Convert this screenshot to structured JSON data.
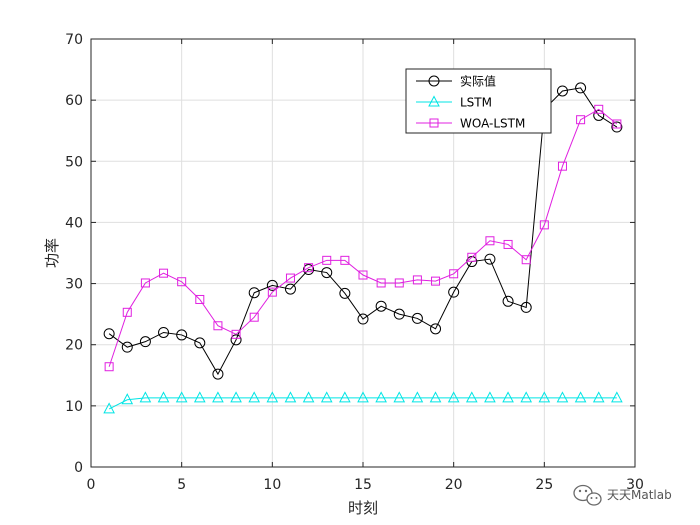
{
  "chart_data": {
    "type": "line",
    "title": "",
    "xlabel": "时刻",
    "ylabel": "功率",
    "xlim": [
      0,
      30
    ],
    "ylim": [
      0,
      70
    ],
    "xticks": [
      0,
      5,
      10,
      15,
      20,
      25,
      30
    ],
    "yticks": [
      0,
      10,
      20,
      30,
      40,
      50,
      60,
      70
    ],
    "grid": true,
    "legend_position": "top-right",
    "x": [
      1,
      2,
      3,
      4,
      5,
      6,
      7,
      8,
      9,
      10,
      11,
      12,
      13,
      14,
      15,
      16,
      17,
      18,
      19,
      20,
      21,
      22,
      23,
      24,
      25,
      26,
      27,
      28,
      29
    ],
    "series": [
      {
        "name": "实际值",
        "color": "#000000",
        "marker": "circle",
        "values": [
          21.8,
          19.6,
          20.5,
          22.0,
          21.6,
          20.3,
          15.2,
          20.8,
          28.5,
          29.7,
          29.1,
          32.3,
          31.8,
          28.4,
          24.2,
          26.3,
          25.0,
          24.3,
          22.6,
          28.6,
          33.6,
          34.0,
          27.1,
          26.1,
          58.5,
          61.5,
          62.0,
          57.5,
          55.6
        ]
      },
      {
        "name": "LSTM",
        "color": "#00e5e5",
        "marker": "triangle",
        "values": [
          9.5,
          11.0,
          11.3,
          11.3,
          11.3,
          11.3,
          11.3,
          11.3,
          11.3,
          11.3,
          11.3,
          11.3,
          11.3,
          11.3,
          11.3,
          11.3,
          11.3,
          11.3,
          11.3,
          11.3,
          11.3,
          11.3,
          11.3,
          11.3,
          11.3,
          11.3,
          11.3,
          11.3,
          11.3
        ]
      },
      {
        "name": "WOA-LSTM",
        "color": "#e020e0",
        "marker": "square",
        "values": [
          16.4,
          25.3,
          30.1,
          31.7,
          30.3,
          27.4,
          23.1,
          21.7,
          24.5,
          28.6,
          30.9,
          32.6,
          33.8,
          33.8,
          31.4,
          30.1,
          30.1,
          30.6,
          30.4,
          31.6,
          34.3,
          37.0,
          36.4,
          33.9,
          39.6,
          49.2,
          56.8,
          58.5,
          56.1
        ]
      }
    ]
  },
  "watermark": {
    "text": "天天Matlab",
    "icon": "wechat-icon"
  }
}
